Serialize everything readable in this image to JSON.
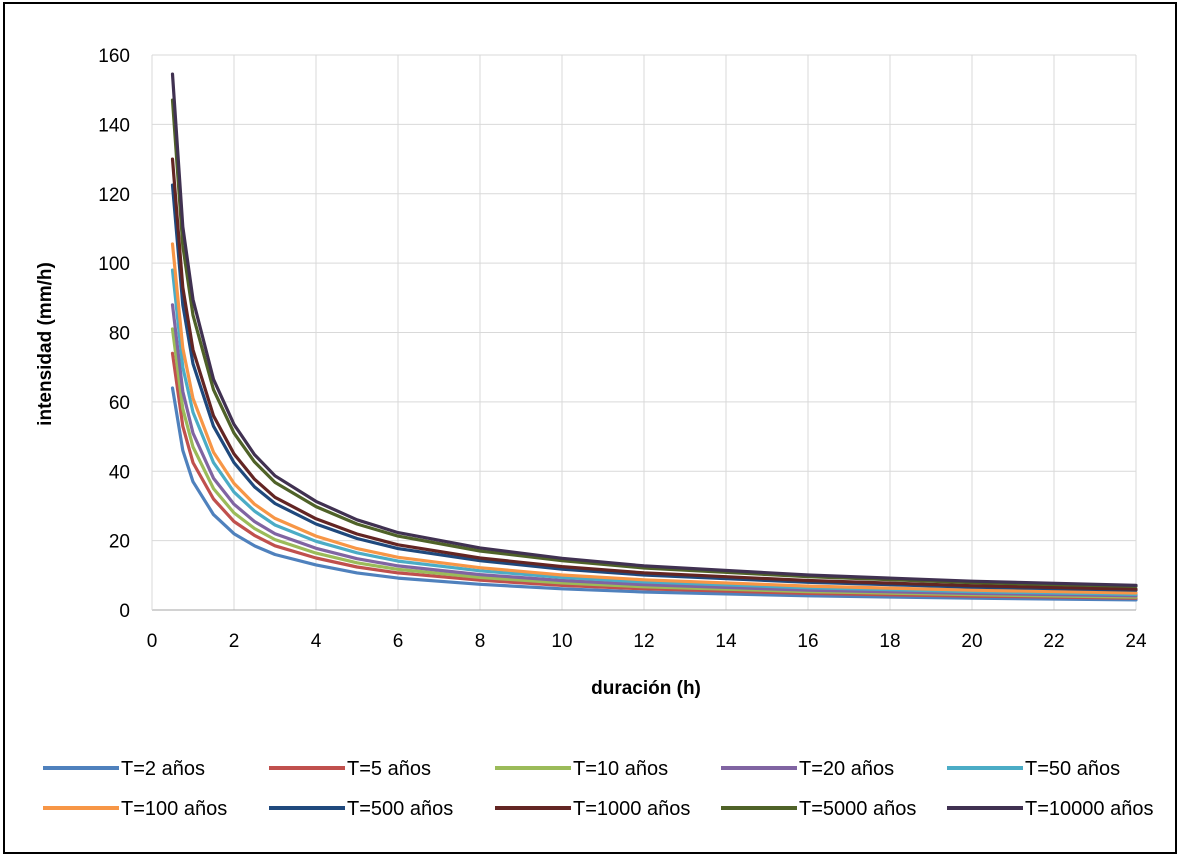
{
  "chart_data": {
    "type": "line",
    "title": "",
    "xlabel": "duración (h)",
    "ylabel": "intensidad (mm/h)",
    "xlim": [
      0,
      24
    ],
    "ylim": [
      0,
      160
    ],
    "xticks": [
      0,
      2,
      4,
      6,
      8,
      10,
      12,
      14,
      16,
      18,
      20,
      22,
      24
    ],
    "yticks": [
      0,
      20,
      40,
      60,
      80,
      100,
      120,
      140,
      160
    ],
    "grid": true,
    "legend_position": "bottom",
    "x": [
      0.5,
      0.75,
      1,
      1.5,
      2,
      2.5,
      3,
      4,
      5,
      6,
      8,
      10,
      12,
      16,
      20,
      24
    ],
    "series": [
      {
        "name": "T=2 años",
        "color": "#4F81BD",
        "values": [
          64,
          46,
          37,
          27.5,
          22,
          18.5,
          16,
          13,
          10.7,
          9.2,
          7.4,
          6.1,
          5.2,
          4.1,
          3.4,
          2.9
        ]
      },
      {
        "name": "T=5 años",
        "color": "#C0504D",
        "values": [
          74,
          53,
          42.5,
          32,
          25.5,
          21.5,
          18.5,
          15,
          12.4,
          10.7,
          8.6,
          7.1,
          6.1,
          4.8,
          4.0,
          3.4
        ]
      },
      {
        "name": "T=10 años",
        "color": "#9BBB59",
        "values": [
          81,
          58,
          47,
          35,
          28,
          23.5,
          20.3,
          16.4,
          13.6,
          11.7,
          9.4,
          7.8,
          6.7,
          5.3,
          4.4,
          3.7
        ]
      },
      {
        "name": "T=20 años",
        "color": "#8064A2",
        "values": [
          88,
          63,
          51,
          38,
          30.5,
          25.5,
          22,
          17.8,
          14.8,
          12.7,
          10.2,
          8.5,
          7.3,
          5.7,
          4.8,
          4.1
        ]
      },
      {
        "name": "T=50 años",
        "color": "#4BACC6",
        "values": [
          98,
          70,
          57,
          42.5,
          34,
          28.5,
          24.5,
          19.8,
          16.5,
          14.1,
          11.3,
          9.4,
          8.1,
          6.4,
          5.3,
          4.5
        ]
      },
      {
        "name": "T=100 años",
        "color": "#F79646",
        "values": [
          105.5,
          75.5,
          61,
          45.5,
          36.5,
          30.5,
          26.4,
          21.3,
          17.7,
          15.2,
          12.2,
          10.1,
          8.7,
          6.9,
          5.7,
          4.9
        ]
      },
      {
        "name": "T=500 años",
        "color": "#1F497D",
        "values": [
          122.5,
          88,
          71,
          53,
          42.5,
          35.5,
          30.7,
          24.8,
          20.6,
          17.7,
          14.2,
          11.8,
          10.1,
          8.0,
          6.6,
          5.7
        ]
      },
      {
        "name": "T=1000 años",
        "color": "#632523",
        "values": [
          130,
          93,
          75,
          56,
          45,
          37.7,
          32.5,
          26.3,
          21.9,
          18.8,
          15.0,
          12.5,
          10.7,
          8.5,
          7.0,
          6.0
        ]
      },
      {
        "name": "T=5000 años",
        "color": "#4F6228",
        "values": [
          147,
          105,
          85,
          63.5,
          51,
          42.7,
          36.8,
          29.8,
          24.8,
          21.3,
          17.0,
          14.2,
          12.1,
          9.6,
          7.9,
          6.8
        ]
      },
      {
        "name": "T=10000 años",
        "color": "#403151",
        "values": [
          154.5,
          110.5,
          89.5,
          66.5,
          53.5,
          44.8,
          38.7,
          31.3,
          26.0,
          22.3,
          17.9,
          14.9,
          12.7,
          10.1,
          8.3,
          7.1
        ]
      }
    ]
  }
}
